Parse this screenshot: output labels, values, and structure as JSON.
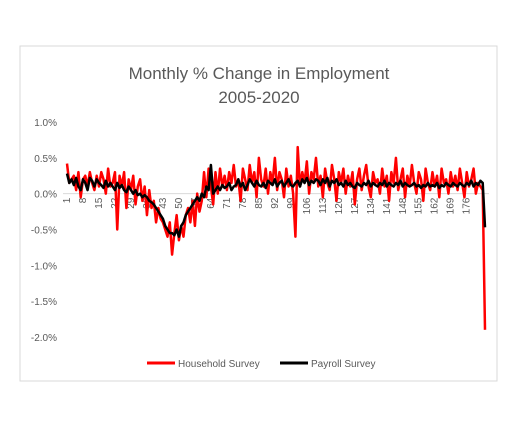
{
  "chart_data": {
    "type": "line",
    "title": "Monthly % Change in Employment",
    "subtitle": "2005-2020",
    "categories": [
      "1",
      null,
      null,
      null,
      null,
      null,
      null,
      "8",
      null,
      null,
      null,
      null,
      null,
      null,
      "15",
      null,
      null,
      null,
      null,
      null,
      null,
      "22",
      null,
      null,
      null,
      null,
      null,
      null,
      "29",
      null,
      null,
      null,
      null,
      null,
      null,
      "36",
      null,
      null,
      null,
      null,
      null,
      null,
      "43",
      null,
      null,
      null,
      null,
      null,
      null,
      "50",
      null,
      null,
      null,
      null,
      null,
      null,
      "57",
      null,
      null,
      null,
      null,
      null,
      null,
      "64",
      null,
      null,
      null,
      null,
      null,
      null,
      "71",
      null,
      null,
      null,
      null,
      null,
      null,
      "78",
      null,
      null,
      null,
      null,
      null,
      null,
      "85",
      null,
      null,
      null,
      null,
      null,
      null,
      "92",
      null,
      null,
      null,
      null,
      null,
      null,
      "99",
      null,
      null,
      null,
      null,
      null,
      null,
      "106",
      null,
      null,
      null,
      null,
      null,
      null,
      "113",
      null,
      null,
      null,
      null,
      null,
      null,
      "120",
      null,
      null,
      null,
      null,
      null,
      null,
      "127",
      null,
      null,
      null,
      null,
      null,
      null,
      "134",
      null,
      null,
      null,
      null,
      null,
      null,
      "141",
      null,
      null,
      null,
      null,
      null,
      null,
      "148",
      null,
      null,
      null,
      null,
      null,
      null,
      "155",
      null,
      null,
      null,
      null,
      null,
      null,
      "162",
      null,
      null,
      null,
      null,
      null,
      null,
      "169",
      null,
      null,
      null,
      null,
      null,
      null,
      "176",
      null,
      null,
      null,
      null,
      null,
      null,
      null,
      null
    ],
    "series": [
      {
        "name": "Household Survey",
        "color": "#ff0000",
        "values": [
          0.42,
          0.15,
          0.2,
          0.25,
          0.05,
          0.3,
          -0.05,
          0.2,
          0.25,
          0.1,
          0.3,
          0.15,
          0.05,
          0.25,
          0.1,
          0.3,
          0.2,
          0.0,
          0.35,
          0.1,
          0.15,
          0.3,
          -0.5,
          0.25,
          0.1,
          0.3,
          -0.2,
          0.2,
          0.05,
          0.25,
          -0.15,
          0.1,
          0.2,
          -0.1,
          0.1,
          -0.3,
          0.05,
          -0.2,
          -0.1,
          -0.4,
          -0.2,
          -0.35,
          -0.4,
          -0.5,
          -0.6,
          -0.4,
          -0.85,
          -0.55,
          -0.3,
          -0.65,
          -0.45,
          -0.6,
          -0.3,
          -0.2,
          -0.4,
          -0.1,
          -0.45,
          0.0,
          -0.25,
          -0.1,
          0.3,
          -0.05,
          0.35,
          0.1,
          -0.15,
          0.3,
          0.0,
          0.35,
          0.1,
          0.25,
          0.05,
          0.3,
          0.15,
          0.4,
          0.1,
          0.2,
          -0.1,
          0.35,
          0.2,
          0.05,
          0.4,
          0.15,
          0.3,
          -0.05,
          0.5,
          0.2,
          0.1,
          0.35,
          0.0,
          0.3,
          0.15,
          0.5,
          0.05,
          0.3,
          0.2,
          -0.05,
          0.35,
          0.1,
          0.25,
          0.0,
          -0.6,
          0.65,
          0.1,
          0.3,
          0.15,
          0.45,
          0.0,
          0.3,
          0.2,
          0.5,
          0.1,
          0.25,
          -0.05,
          0.35,
          0.15,
          0.05,
          0.4,
          0.2,
          -0.1,
          0.3,
          0.15,
          0.35,
          0.0,
          0.25,
          0.1,
          0.3,
          -0.15,
          0.2,
          0.35,
          0.05,
          0.25,
          0.4,
          0.1,
          -0.05,
          0.3,
          0.15,
          0.2,
          0.0,
          0.35,
          0.1,
          0.25,
          -0.1,
          0.3,
          0.15,
          0.5,
          0.05,
          0.2,
          0.35,
          -0.05,
          0.25,
          0.1,
          0.4,
          0.15,
          0.0,
          0.3,
          0.2,
          -0.1,
          0.35,
          0.15,
          0.05,
          0.3,
          0.1,
          0.25,
          -0.05,
          0.35,
          0.15,
          0.2,
          0.0,
          0.3,
          0.1,
          0.25,
          0.05,
          0.35,
          0.15,
          -0.05,
          0.3,
          0.1,
          0.2,
          0.35,
          0.0,
          0.15,
          0.1,
          0.05,
          -1.9
        ]
      },
      {
        "name": "Payroll Survey",
        "color": "#000000",
        "values": [
          0.28,
          0.15,
          0.2,
          0.12,
          0.22,
          0.1,
          0.05,
          0.2,
          0.15,
          0.05,
          0.22,
          0.18,
          0.1,
          0.2,
          0.15,
          0.12,
          0.08,
          0.18,
          0.1,
          0.15,
          0.1,
          0.05,
          0.15,
          0.08,
          0.12,
          0.05,
          0.02,
          0.1,
          0.05,
          0.0,
          0.05,
          -0.02,
          0.0,
          -0.05,
          -0.02,
          -0.05,
          -0.1,
          -0.12,
          -0.15,
          -0.2,
          -0.25,
          -0.3,
          -0.35,
          -0.45,
          -0.5,
          -0.55,
          -0.55,
          -0.58,
          -0.5,
          -0.6,
          -0.45,
          -0.4,
          -0.3,
          -0.25,
          -0.2,
          -0.15,
          -0.1,
          -0.05,
          -0.1,
          0.0,
          -0.05,
          0.1,
          0.05,
          0.4,
          0.0,
          0.05,
          0.1,
          0.05,
          0.12,
          0.08,
          0.1,
          0.15,
          0.05,
          0.1,
          0.12,
          0.2,
          0.1,
          0.15,
          0.05,
          0.12,
          0.2,
          0.15,
          0.1,
          0.18,
          0.12,
          0.1,
          0.15,
          0.08,
          0.18,
          0.15,
          0.12,
          0.2,
          0.1,
          0.15,
          0.18,
          0.1,
          0.15,
          0.2,
          0.12,
          0.1,
          0.15,
          0.18,
          0.1,
          0.2,
          0.15,
          0.22,
          0.12,
          0.18,
          0.15,
          0.2,
          0.18,
          0.12,
          0.2,
          0.15,
          0.22,
          0.1,
          0.18,
          0.15,
          0.2,
          0.12,
          0.15,
          0.1,
          0.18,
          0.12,
          0.15,
          0.1,
          0.08,
          0.15,
          0.12,
          0.1,
          0.15,
          0.12,
          0.18,
          0.1,
          0.15,
          0.12,
          0.1,
          0.15,
          0.12,
          0.18,
          0.1,
          0.15,
          0.12,
          0.1,
          0.15,
          0.12,
          0.18,
          0.1,
          0.15,
          0.12,
          0.1,
          0.12,
          0.15,
          0.1,
          0.12,
          0.08,
          0.12,
          0.1,
          0.15,
          0.1,
          0.12,
          0.1,
          0.15,
          0.08,
          0.12,
          0.1,
          0.15,
          0.12,
          0.1,
          0.15,
          0.12,
          0.1,
          0.15,
          0.12,
          0.1,
          0.15,
          0.12,
          0.18,
          0.1,
          0.15,
          0.12,
          0.18,
          0.15,
          -0.47
        ]
      }
    ],
    "ylim": [
      -2,
      1
    ],
    "yticks": [
      {
        "value": 1,
        "label": "1.0%"
      },
      {
        "value": 0.5,
        "label": "0.5%"
      },
      {
        "value": 0,
        "label": "0.0%"
      },
      {
        "value": -0.5,
        "label": "-0.5%"
      },
      {
        "value": -1,
        "label": "-1.0%"
      },
      {
        "value": -1.5,
        "label": "-1.5%"
      },
      {
        "value": -2,
        "label": "-2.0%"
      }
    ],
    "grid": false,
    "legend": "bottom"
  }
}
